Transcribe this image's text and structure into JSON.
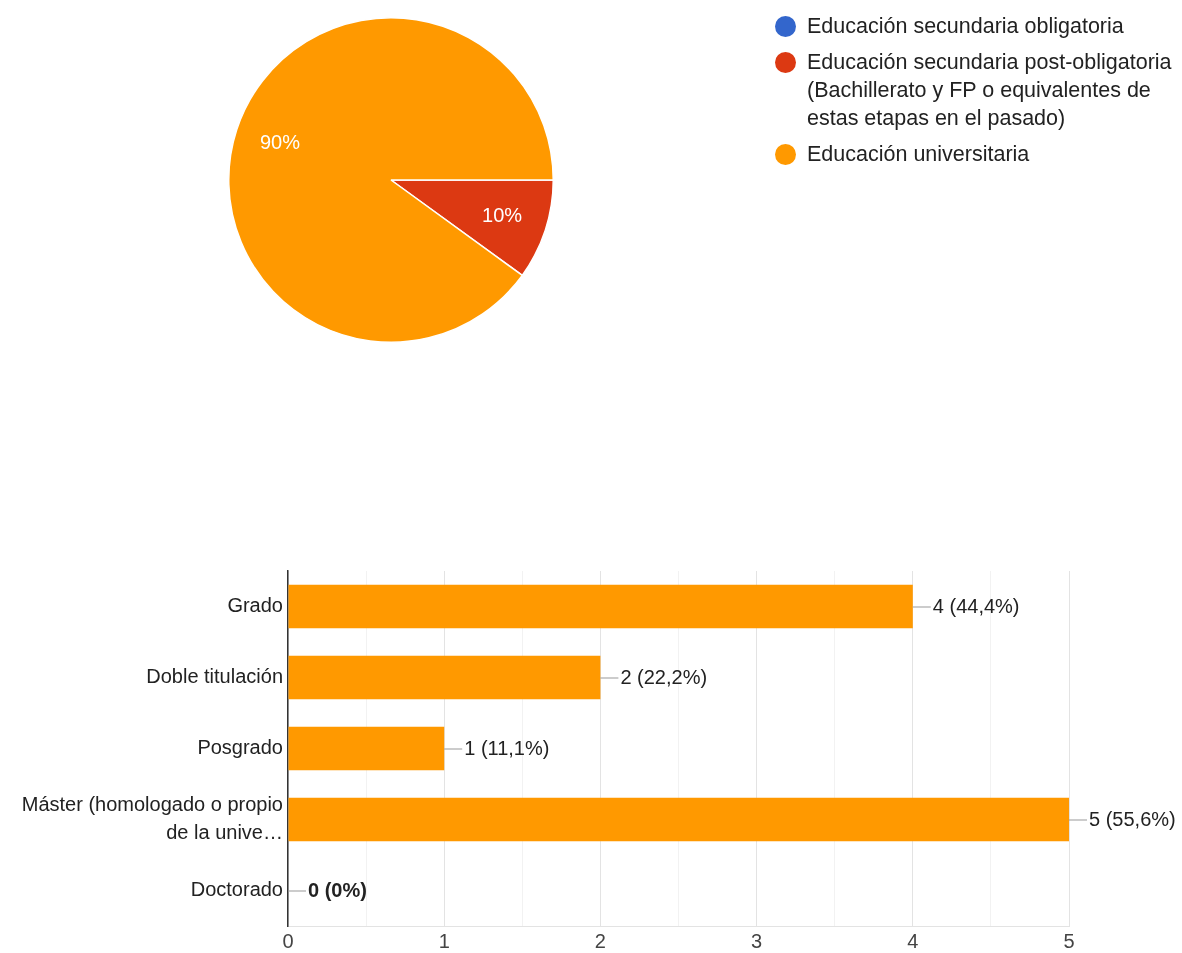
{
  "chart_data": [
    {
      "type": "pie",
      "categories": [
        "Educación secundaria obligatoria",
        "Educación secundaria post-obligatoria (Bachillerato y FP o equivalentes de estas etapas en el pasado)",
        "Educación universitaria"
      ],
      "values": [
        0,
        10,
        90
      ],
      "colors": [
        "#3366cc",
        "#dc3912",
        "#ff9900"
      ],
      "value_labels": [
        null,
        "10%",
        "90%"
      ],
      "legend": "top right"
    },
    {
      "type": "bar",
      "orientation": "horizontal",
      "categories": [
        "Grado",
        "Doble titulación",
        "Posgrado",
        "Máster (homologado o propio de la unive…",
        "Doctorado"
      ],
      "values": [
        4,
        2,
        1,
        5,
        0
      ],
      "color": "#ff9900",
      "xlim": [
        0,
        5
      ],
      "xticks": [
        0,
        {
          "value": 0.5,
          "label": null
        },
        1,
        {
          "value": 1.5,
          "label": null
        },
        2,
        {
          "value": 2.5,
          "label": null
        },
        3,
        {
          "value": 3.5,
          "label": null
        },
        4,
        {
          "value": 4.5,
          "label": null
        },
        5
      ],
      "grid": "x",
      "value_labels": [
        "4 (44,4%)",
        "2 (22,2%)",
        "1 (11,1%)",
        "5 (55,6%)",
        "0 (0%)"
      ]
    }
  ]
}
